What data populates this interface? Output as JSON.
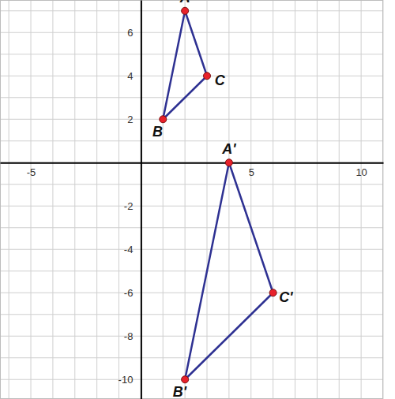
{
  "chart_data": {
    "type": "polygon",
    "xlim": [
      -6.4,
      11
    ],
    "ylim": [
      -10.9,
      7.5
    ],
    "xticks": [
      -5,
      5,
      10
    ],
    "yticks": [
      -10,
      -8,
      -6,
      -4,
      -2,
      2,
      4,
      6
    ],
    "grid": true,
    "marker": "circle",
    "series": [
      {
        "x": [
          2,
          1,
          3
        ],
        "values": [
          7,
          2,
          4
        ],
        "labels": [
          "A",
          "B",
          "C"
        ],
        "color": "#2e3192"
      },
      {
        "x": [
          4,
          2,
          6
        ],
        "values": [
          0,
          -10,
          -6
        ],
        "labels": [
          "A'",
          "B'",
          "C'"
        ],
        "color": "#2e3192"
      }
    ]
  }
}
